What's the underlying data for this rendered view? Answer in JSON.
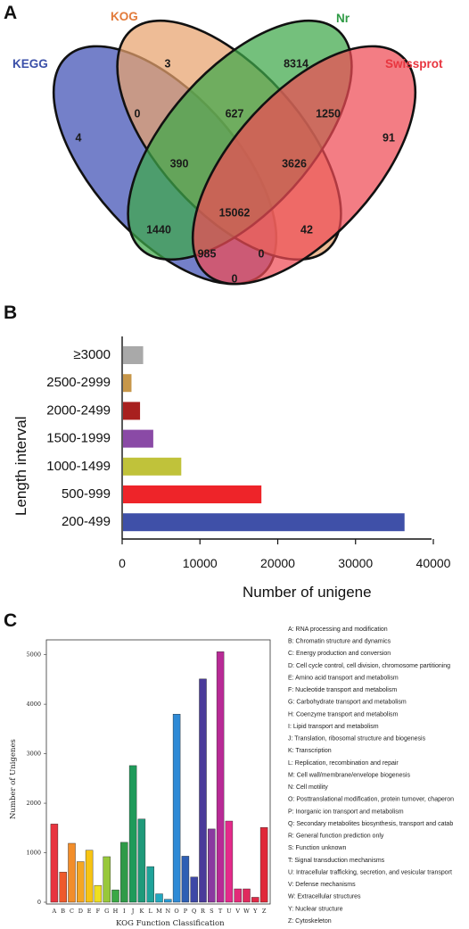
{
  "panels": {
    "a": "A",
    "b": "B",
    "c": "C"
  },
  "chart_data": [
    {
      "type": "venn",
      "sets": [
        {
          "name": "KEGG",
          "color": "#3f4fb4",
          "label_color": "#3a4fa8"
        },
        {
          "name": "KOG",
          "color": "#e8a26e",
          "label_color": "#e27a3a"
        },
        {
          "name": "Nr",
          "color": "#3ea84a",
          "label_color": "#2e9a44"
        },
        {
          "name": "Swissprot",
          "color": "#ee4b55",
          "label_color": "#e8353f"
        }
      ],
      "regions": [
        {
          "sets": [
            "KEGG"
          ],
          "value": 4
        },
        {
          "sets": [
            "KOG"
          ],
          "value": 3
        },
        {
          "sets": [
            "Nr"
          ],
          "value": 8314
        },
        {
          "sets": [
            "Swissprot"
          ],
          "value": 91
        },
        {
          "sets": [
            "KEGG",
            "KOG"
          ],
          "value": 0
        },
        {
          "sets": [
            "KOG",
            "Nr"
          ],
          "value": 627
        },
        {
          "sets": [
            "Nr",
            "Swissprot"
          ],
          "value": 1250
        },
        {
          "sets": [
            "KEGG",
            "KOG",
            "Nr"
          ],
          "value": 390
        },
        {
          "sets": [
            "KOG",
            "Nr",
            "Swissprot"
          ],
          "value": 3626
        },
        {
          "sets": [
            "KEGG",
            "KOG",
            "Nr",
            "Swissprot"
          ],
          "value": 15062
        },
        {
          "sets": [
            "KEGG",
            "Nr"
          ],
          "value": 1440
        },
        {
          "sets": [
            "KOG",
            "Swissprot"
          ],
          "value": 42
        },
        {
          "sets": [
            "KEGG",
            "Nr",
            "Swissprot"
          ],
          "value": 985
        },
        {
          "sets": [
            "KEGG",
            "KOG",
            "Swissprot"
          ],
          "value": 0
        },
        {
          "sets": [
            "KEGG",
            "Swissprot"
          ],
          "value": 0
        }
      ]
    },
    {
      "type": "bar",
      "orientation": "horizontal",
      "categories": [
        "≥3000",
        "2500-2999",
        "2000-2499",
        "1500-1999",
        "1000-1499",
        "500-999",
        "200-499"
      ],
      "values": [
        2700,
        1200,
        2300,
        4000,
        7600,
        17900,
        36300
      ],
      "colors": [
        "#a9a9a9",
        "#c7974a",
        "#a8201f",
        "#8a4aa6",
        "#c0c23a",
        "#ee2429",
        "#3f50a8"
      ],
      "xlabel": "Number of unigene",
      "ylabel": "Length interval",
      "xlim": [
        0,
        40000
      ],
      "xticks": [
        0,
        10000,
        20000,
        30000,
        40000
      ],
      "grid": false
    },
    {
      "type": "bar",
      "categories": [
        "A",
        "B",
        "C",
        "D",
        "E",
        "F",
        "G",
        "H",
        "I",
        "J",
        "K",
        "L",
        "M",
        "N",
        "O",
        "P",
        "Q",
        "R",
        "S",
        "T",
        "U",
        "V",
        "W",
        "Y",
        "Z"
      ],
      "values": [
        1580,
        610,
        1190,
        820,
        1050,
        340,
        920,
        250,
        1210,
        2760,
        1680,
        720,
        170,
        60,
        3800,
        930,
        510,
        4510,
        1480,
        5060,
        1640,
        270,
        270,
        100,
        1510
      ],
      "colors": [
        "#e8343f",
        "#ee5a2c",
        "#f28d2a",
        "#f5a623",
        "#f7c414",
        "#efe020",
        "#98c83a",
        "#3aa845",
        "#2f9a48",
        "#1f9a5a",
        "#1f9a7a",
        "#1fa39a",
        "#23a8c0",
        "#2a9ad4",
        "#2e8ad6",
        "#2e5fb4",
        "#3e48a6",
        "#4a3a9a",
        "#8a3aa0",
        "#b82a96",
        "#e42a8a",
        "#e32a78",
        "#e02a5e",
        "#e02a48",
        "#e0283a"
      ],
      "xlabel": "KOG Function Classification",
      "ylabel": "Number of Unigenes",
      "ylim": [
        0,
        5300
      ],
      "yticks": [
        0,
        1000,
        2000,
        3000,
        4000,
        5000
      ],
      "legend": [
        "A: RNA processing and modification",
        "B: Chromatin structure and dynamics",
        "C: Energy production and conversion",
        "D: Cell cycle control, cell division, chromosome partitioning",
        "E: Amino acid transport and metabolism",
        "F: Nucleotide transport and metabolism",
        "G: Carbohydrate transport and metabolism",
        "H: Coenzyme transport and metabolism",
        "I: Lipid transport and metabolism",
        "J: Translation, ribosomal structure and biogenesis",
        "K: Transcription",
        "L: Replication, recombination and repair",
        "M: Cell wall/membrane/envelope biogenesis",
        "N: Cell motility",
        "O: Posttranslational modification, protein turnover, chaperon",
        "P: Inorganic ion transport and metabolism",
        "Q: Secondary metabolites biosynthesis, transport and catab",
        "R: General function prediction only",
        "S: Function unknown",
        "T: Signal transduction mechanisms",
        "U: Intracellular trafficking, secretion, and vesicular transport",
        "V: Defense mechanisms",
        "W: Extracellular structures",
        "Y: Nuclear structure",
        "Z: Cytoskeleton"
      ],
      "legend_position": "right"
    }
  ]
}
